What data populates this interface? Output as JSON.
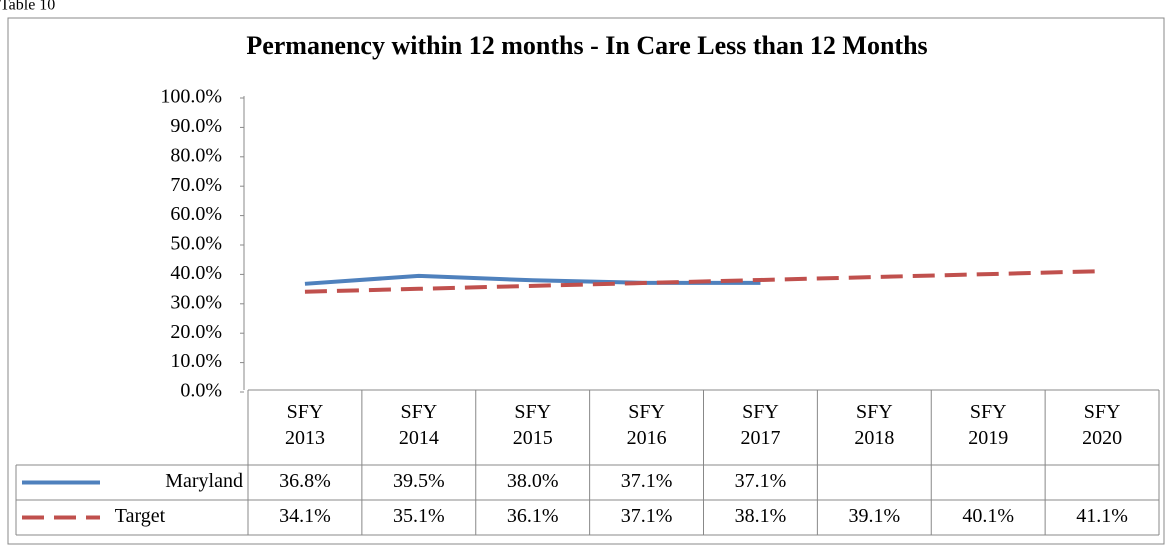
{
  "caption": "Table 10",
  "chart_data": {
    "type": "line",
    "title": "Permanency within 12 months - In Care Less than 12 Months",
    "categories": [
      "SFY 2013",
      "SFY 2014",
      "SFY 2015",
      "SFY 2016",
      "SFY 2017",
      "SFY 2018",
      "SFY 2019",
      "SFY 2020"
    ],
    "series": [
      {
        "name": "Maryland",
        "color": "#4f81bd",
        "dashed": false,
        "values": [
          36.8,
          39.5,
          38.0,
          37.1,
          37.1,
          null,
          null,
          null
        ],
        "value_labels": [
          "36.8%",
          "39.5%",
          "38.0%",
          "37.1%",
          "37.1%",
          null,
          null,
          null
        ]
      },
      {
        "name": "Target",
        "color": "#c0504d",
        "dashed": true,
        "values": [
          34.1,
          35.1,
          36.1,
          37.1,
          38.1,
          39.1,
          40.1,
          41.1
        ],
        "value_labels": [
          "34.1%",
          "35.1%",
          "36.1%",
          "37.1%",
          "38.1%",
          "39.1%",
          "40.1%",
          "41.1%"
        ]
      }
    ],
    "ylim": [
      0,
      100
    ],
    "yticks": [
      {
        "value": 0,
        "label": "0.0%"
      },
      {
        "value": 10,
        "label": "10.0%"
      },
      {
        "value": 20,
        "label": "20.0%"
      },
      {
        "value": 30,
        "label": "30.0%"
      },
      {
        "value": 40,
        "label": "40.0%"
      },
      {
        "value": 50,
        "label": "50.0%"
      },
      {
        "value": 60,
        "label": "60.0%"
      },
      {
        "value": 70,
        "label": "70.0%"
      },
      {
        "value": 80,
        "label": "80.0%"
      },
      {
        "value": 90,
        "label": "90.0%"
      },
      {
        "value": 100,
        "label": "100.0%"
      }
    ],
    "grid": false
  }
}
